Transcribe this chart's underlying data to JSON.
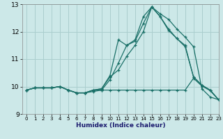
{
  "xlabel": "Humidex (Indice chaleur)",
  "xlim": [
    -0.5,
    23
  ],
  "ylim": [
    9,
    13
  ],
  "yticks": [
    9,
    10,
    11,
    12,
    13
  ],
  "xticks": [
    0,
    1,
    2,
    3,
    4,
    5,
    6,
    7,
    8,
    9,
    10,
    11,
    12,
    13,
    14,
    15,
    16,
    17,
    18,
    19,
    20,
    21,
    22,
    23
  ],
  "bg_color": "#cce8e8",
  "grid_color": "#aacece",
  "line_color": "#1a7068",
  "lines": [
    {
      "x": [
        0,
        1,
        2,
        3,
        4,
        5,
        6,
        7,
        8,
        9,
        10,
        11,
        12,
        13,
        14,
        15,
        16,
        17,
        18,
        19,
        20,
        21,
        22,
        23
      ],
      "y": [
        9.87,
        9.95,
        9.95,
        9.95,
        10.0,
        9.87,
        9.77,
        9.77,
        9.82,
        9.87,
        10.25,
        10.85,
        11.5,
        11.65,
        12.3,
        12.9,
        12.65,
        12.45,
        12.1,
        11.8,
        11.45,
        9.92,
        9.62,
        9.52
      ]
    },
    {
      "x": [
        0,
        1,
        2,
        3,
        4,
        5,
        6,
        7,
        8,
        9,
        10,
        11,
        12,
        13,
        14,
        15,
        16,
        17,
        18,
        19,
        20,
        21,
        22,
        23
      ],
      "y": [
        9.87,
        9.95,
        9.95,
        9.95,
        10.0,
        9.87,
        9.77,
        9.77,
        9.87,
        9.92,
        10.4,
        11.7,
        11.5,
        11.7,
        12.55,
        12.9,
        12.55,
        12.05,
        11.75,
        11.45,
        10.35,
        10.05,
        9.87,
        9.52
      ]
    },
    {
      "x": [
        0,
        1,
        2,
        3,
        4,
        5,
        6,
        7,
        8,
        9,
        10,
        11,
        12,
        13,
        14,
        15,
        16,
        17,
        18,
        19,
        20,
        21,
        22,
        23
      ],
      "y": [
        9.87,
        9.95,
        9.95,
        9.95,
        10.0,
        9.87,
        9.77,
        9.77,
        9.87,
        9.92,
        10.35,
        10.6,
        11.1,
        11.5,
        12.0,
        12.9,
        12.55,
        12.1,
        11.75,
        11.5,
        10.35,
        10.05,
        9.87,
        9.52
      ]
    },
    {
      "x": [
        0,
        1,
        2,
        3,
        4,
        5,
        6,
        7,
        8,
        9,
        10,
        11,
        12,
        13,
        14,
        15,
        16,
        17,
        18,
        19,
        20,
        21,
        22,
        23
      ],
      "y": [
        9.87,
        9.95,
        9.95,
        9.95,
        10.0,
        9.87,
        9.77,
        9.77,
        9.87,
        9.87,
        9.87,
        9.87,
        9.87,
        9.87,
        9.87,
        9.87,
        9.87,
        9.87,
        9.87,
        9.87,
        10.3,
        10.02,
        9.85,
        9.52
      ]
    }
  ]
}
